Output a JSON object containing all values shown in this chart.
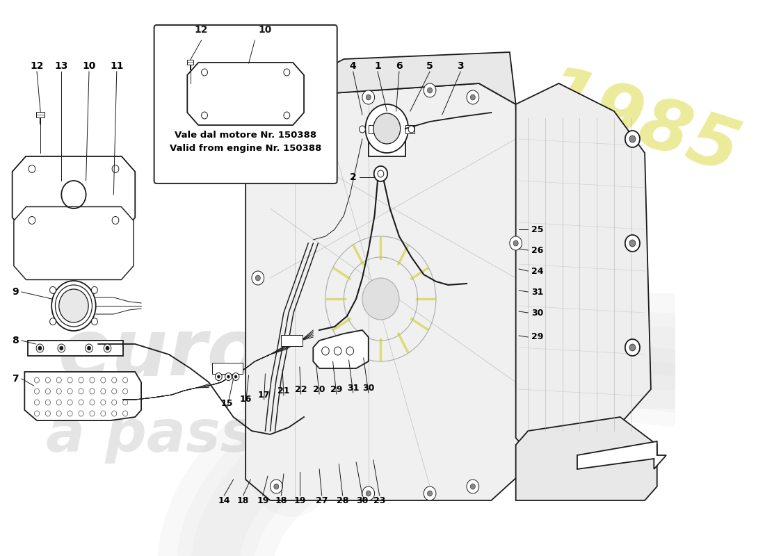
{
  "bg_color": "#ffffff",
  "line_color": "#1a1a1a",
  "watermark_swoop_color": "#d8d8d8",
  "watermark_text_color": "#c8c8c8",
  "watermark_year_color": "#d4d420",
  "inset_text1": "Vale dal motore Nr. 150388",
  "inset_text2": "Valid from engine Nr. 150388",
  "label_font_size": 10,
  "label_font_size_sm": 9,
  "lw_main": 1.3,
  "lw_thin": 0.7,
  "lw_thick": 2.0
}
